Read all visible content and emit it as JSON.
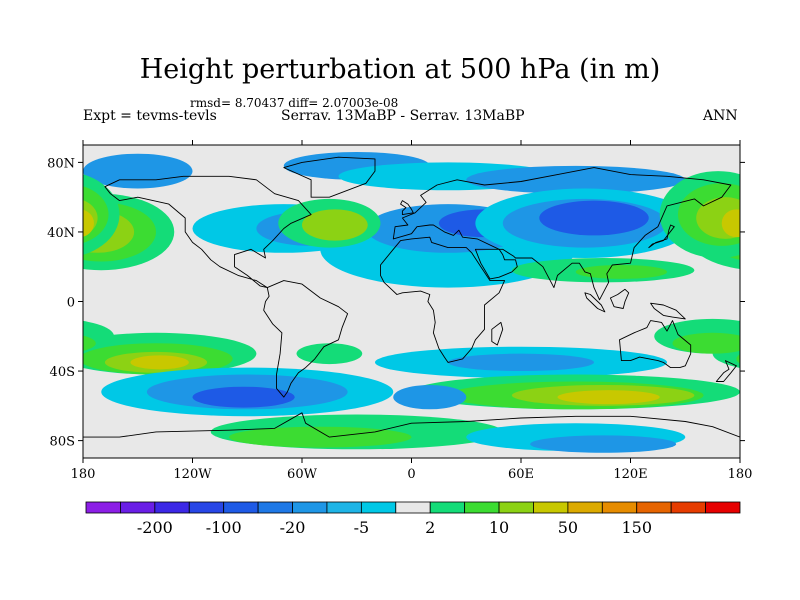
{
  "title": "Height perturbation at 500 hPa (in m)",
  "stats": "rmsd= 8.70437 diff= 2.07003e-08",
  "left_label": "Expt = tevms-tevls",
  "center_label": "Serrav.   13MaBP - Serrav.   13MaBP",
  "right_label": "ANN",
  "map": {
    "projection": "cylindrical-equidistant",
    "lon_range": [
      -180,
      180
    ],
    "lat_range": [
      -90,
      90
    ],
    "lon_ticks": [
      {
        "value": -180,
        "label": "180"
      },
      {
        "value": -120,
        "label": "120W"
      },
      {
        "value": -60,
        "label": "60W"
      },
      {
        "value": 0,
        "label": "0"
      },
      {
        "value": 60,
        "label": "60E"
      },
      {
        "value": 120,
        "label": "120E"
      },
      {
        "value": 180,
        "label": "180"
      }
    ],
    "lat_ticks": [
      {
        "value": 80,
        "label": "80N"
      },
      {
        "value": 40,
        "label": "40N"
      },
      {
        "value": 0,
        "label": "0"
      },
      {
        "value": -40,
        "label": "40S"
      },
      {
        "value": -80,
        "label": "80S"
      }
    ]
  },
  "colorbar": {
    "colors": [
      "#8c1ee6",
      "#6a1ee6",
      "#3c28e6",
      "#2846e6",
      "#1e5ae6",
      "#1e78e6",
      "#1e96e6",
      "#1eb4e6",
      "#00c8e6",
      "#e8e8e8",
      "#14dc78",
      "#3cdc32",
      "#8cd214",
      "#c8c800",
      "#dcaa00",
      "#e68c00",
      "#e66400",
      "#e63c00",
      "#e60000"
    ],
    "labels": [
      {
        "index": 2,
        "text": "-200"
      },
      {
        "index": 4,
        "text": "-100"
      },
      {
        "index": 6,
        "text": "-20"
      },
      {
        "index": 8,
        "text": "-5"
      },
      {
        "index": 10,
        "text": "2"
      },
      {
        "index": 12,
        "text": "10"
      },
      {
        "index": 14,
        "text": "50"
      },
      {
        "index": 16,
        "text": "150"
      }
    ]
  },
  "field_colors": {
    "strong_negative": "#1e5ae6",
    "negative": "#1e96e6",
    "weak_negative": "#00c8e6",
    "neutral": "#e8e8e8",
    "weak_positive": "#14dc78",
    "positive": "#3cdc32",
    "moderate_positive": "#8cd214",
    "strong_positive": "#c8c800",
    "high_positive": "#dcaa00"
  }
}
